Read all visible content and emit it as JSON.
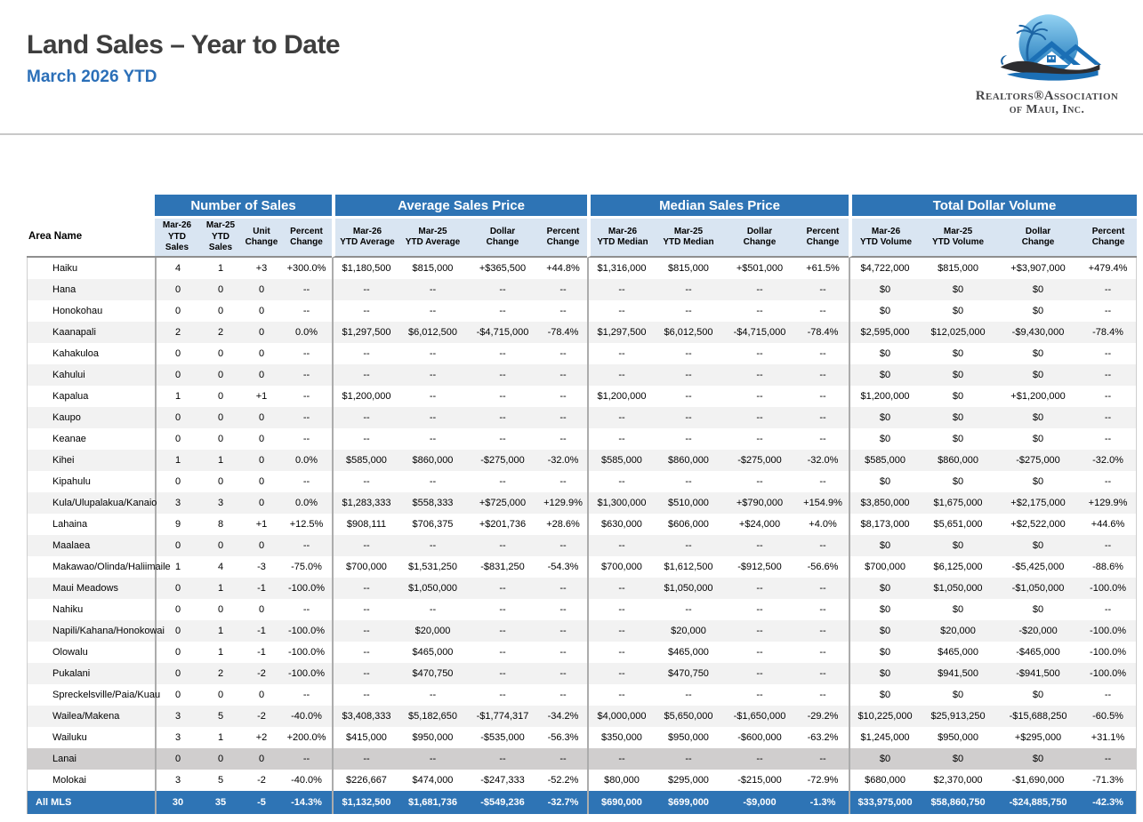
{
  "header": {
    "title": "Land Sales – Year to Date",
    "subtitle": "March 2026 YTD",
    "logo": {
      "line1": "Realtors®Association",
      "line2": "of Maui, Inc."
    }
  },
  "colors": {
    "header_blue": "#2e74b5",
    "subheader_blue": "#d9e5f2",
    "stripe_gray": "#f2f2f2",
    "island_divider_gray": "#d0cece",
    "title_gray": "#3e3e3e",
    "subtitle_blue": "#2b6fb8"
  },
  "table": {
    "area_header": "Area Name",
    "groups": [
      {
        "label": "Number of Sales",
        "columns": [
          "Mar-26\nYTD\nSales",
          "Mar-25\nYTD\nSales",
          "Unit\nChange",
          "Percent\nChange"
        ]
      },
      {
        "label": "Average Sales Price",
        "columns": [
          "Mar-26\nYTD Average",
          "Mar-25\nYTD Average",
          "Dollar\nChange",
          "Percent\nChange"
        ]
      },
      {
        "label": "Median Sales Price",
        "columns": [
          "Mar-26\nYTD Median",
          "Mar-25\nYTD Median",
          "Dollar\nChange",
          "Percent\nChange"
        ]
      },
      {
        "label": "Total Dollar Volume",
        "columns": [
          "Mar-26\nYTD Volume",
          "Mar-25\nYTD Volume",
          "Dollar\nChange",
          "Percent\nChange"
        ]
      }
    ],
    "rows": [
      {
        "area": "Haiku",
        "values": [
          "4",
          "1",
          "+3",
          "+300.0%",
          "$1,180,500",
          "$815,000",
          "+$365,500",
          "+44.8%",
          "$1,316,000",
          "$815,000",
          "+$501,000",
          "+61.5%",
          "$4,722,000",
          "$815,000",
          "+$3,907,000",
          "+479.4%"
        ]
      },
      {
        "area": "Hana",
        "values": [
          "0",
          "0",
          "0",
          "--",
          "--",
          "--",
          "--",
          "--",
          "--",
          "--",
          "--",
          "--",
          "$0",
          "$0",
          "$0",
          "--"
        ]
      },
      {
        "area": "Honokohau",
        "values": [
          "0",
          "0",
          "0",
          "--",
          "--",
          "--",
          "--",
          "--",
          "--",
          "--",
          "--",
          "--",
          "$0",
          "$0",
          "$0",
          "--"
        ]
      },
      {
        "area": "Kaanapali",
        "values": [
          "2",
          "2",
          "0",
          "0.0%",
          "$1,297,500",
          "$6,012,500",
          "-$4,715,000",
          "-78.4%",
          "$1,297,500",
          "$6,012,500",
          "-$4,715,000",
          "-78.4%",
          "$2,595,000",
          "$12,025,000",
          "-$9,430,000",
          "-78.4%"
        ]
      },
      {
        "area": "Kahakuloa",
        "values": [
          "0",
          "0",
          "0",
          "--",
          "--",
          "--",
          "--",
          "--",
          "--",
          "--",
          "--",
          "--",
          "$0",
          "$0",
          "$0",
          "--"
        ]
      },
      {
        "area": "Kahului",
        "values": [
          "0",
          "0",
          "0",
          "--",
          "--",
          "--",
          "--",
          "--",
          "--",
          "--",
          "--",
          "--",
          "$0",
          "$0",
          "$0",
          "--"
        ]
      },
      {
        "area": "Kapalua",
        "values": [
          "1",
          "0",
          "+1",
          "--",
          "$1,200,000",
          "--",
          "--",
          "--",
          "$1,200,000",
          "--",
          "--",
          "--",
          "$1,200,000",
          "$0",
          "+$1,200,000",
          "--"
        ]
      },
      {
        "area": "Kaupo",
        "values": [
          "0",
          "0",
          "0",
          "--",
          "--",
          "--",
          "--",
          "--",
          "--",
          "--",
          "--",
          "--",
          "$0",
          "$0",
          "$0",
          "--"
        ]
      },
      {
        "area": "Keanae",
        "values": [
          "0",
          "0",
          "0",
          "--",
          "--",
          "--",
          "--",
          "--",
          "--",
          "--",
          "--",
          "--",
          "$0",
          "$0",
          "$0",
          "--"
        ]
      },
      {
        "area": "Kihei",
        "values": [
          "1",
          "1",
          "0",
          "0.0%",
          "$585,000",
          "$860,000",
          "-$275,000",
          "-32.0%",
          "$585,000",
          "$860,000",
          "-$275,000",
          "-32.0%",
          "$585,000",
          "$860,000",
          "-$275,000",
          "-32.0%"
        ]
      },
      {
        "area": "Kipahulu",
        "values": [
          "0",
          "0",
          "0",
          "--",
          "--",
          "--",
          "--",
          "--",
          "--",
          "--",
          "--",
          "--",
          "$0",
          "$0",
          "$0",
          "--"
        ]
      },
      {
        "area": "Kula/Ulupalakua/Kanaio",
        "values": [
          "3",
          "3",
          "0",
          "0.0%",
          "$1,283,333",
          "$558,333",
          "+$725,000",
          "+129.9%",
          "$1,300,000",
          "$510,000",
          "+$790,000",
          "+154.9%",
          "$3,850,000",
          "$1,675,000",
          "+$2,175,000",
          "+129.9%"
        ]
      },
      {
        "area": "Lahaina",
        "values": [
          "9",
          "8",
          "+1",
          "+12.5%",
          "$908,111",
          "$706,375",
          "+$201,736",
          "+28.6%",
          "$630,000",
          "$606,000",
          "+$24,000",
          "+4.0%",
          "$8,173,000",
          "$5,651,000",
          "+$2,522,000",
          "+44.6%"
        ]
      },
      {
        "area": "Maalaea",
        "values": [
          "0",
          "0",
          "0",
          "--",
          "--",
          "--",
          "--",
          "--",
          "--",
          "--",
          "--",
          "--",
          "$0",
          "$0",
          "$0",
          "--"
        ]
      },
      {
        "area": "Makawao/Olinda/Haliimaile",
        "values": [
          "1",
          "4",
          "-3",
          "-75.0%",
          "$700,000",
          "$1,531,250",
          "-$831,250",
          "-54.3%",
          "$700,000",
          "$1,612,500",
          "-$912,500",
          "-56.6%",
          "$700,000",
          "$6,125,000",
          "-$5,425,000",
          "-88.6%"
        ]
      },
      {
        "area": "Maui Meadows",
        "values": [
          "0",
          "1",
          "-1",
          "-100.0%",
          "--",
          "$1,050,000",
          "--",
          "--",
          "--",
          "$1,050,000",
          "--",
          "--",
          "$0",
          "$1,050,000",
          "-$1,050,000",
          "-100.0%"
        ]
      },
      {
        "area": "Nahiku",
        "values": [
          "0",
          "0",
          "0",
          "--",
          "--",
          "--",
          "--",
          "--",
          "--",
          "--",
          "--",
          "--",
          "$0",
          "$0",
          "$0",
          "--"
        ]
      },
      {
        "area": "Napili/Kahana/Honokowai",
        "values": [
          "0",
          "1",
          "-1",
          "-100.0%",
          "--",
          "$20,000",
          "--",
          "--",
          "--",
          "$20,000",
          "--",
          "--",
          "$0",
          "$20,000",
          "-$20,000",
          "-100.0%"
        ]
      },
      {
        "area": "Olowalu",
        "values": [
          "0",
          "1",
          "-1",
          "-100.0%",
          "--",
          "$465,000",
          "--",
          "--",
          "--",
          "$465,000",
          "--",
          "--",
          "$0",
          "$465,000",
          "-$465,000",
          "-100.0%"
        ]
      },
      {
        "area": "Pukalani",
        "values": [
          "0",
          "2",
          "-2",
          "-100.0%",
          "--",
          "$470,750",
          "--",
          "--",
          "--",
          "$470,750",
          "--",
          "--",
          "$0",
          "$941,500",
          "-$941,500",
          "-100.0%"
        ]
      },
      {
        "area": "Spreckelsville/Paia/Kuau",
        "values": [
          "0",
          "0",
          "0",
          "--",
          "--",
          "--",
          "--",
          "--",
          "--",
          "--",
          "--",
          "--",
          "$0",
          "$0",
          "$0",
          "--"
        ]
      },
      {
        "area": "Wailea/Makena",
        "values": [
          "3",
          "5",
          "-2",
          "-40.0%",
          "$3,408,333",
          "$5,182,650",
          "-$1,774,317",
          "-34.2%",
          "$4,000,000",
          "$5,650,000",
          "-$1,650,000",
          "-29.2%",
          "$10,225,000",
          "$25,913,250",
          "-$15,688,250",
          "-60.5%"
        ]
      },
      {
        "area": "Wailuku",
        "values": [
          "3",
          "1",
          "+2",
          "+200.0%",
          "$415,000",
          "$950,000",
          "-$535,000",
          "-56.3%",
          "$350,000",
          "$950,000",
          "-$600,000",
          "-63.2%",
          "$1,245,000",
          "$950,000",
          "+$295,000",
          "+31.1%"
        ]
      },
      {
        "area": "Lanai",
        "dark": true,
        "values": [
          "0",
          "0",
          "0",
          "--",
          "--",
          "--",
          "--",
          "--",
          "--",
          "--",
          "--",
          "--",
          "$0",
          "$0",
          "$0",
          "--"
        ]
      },
      {
        "area": "Molokai",
        "values": [
          "3",
          "5",
          "-2",
          "-40.0%",
          "$226,667",
          "$474,000",
          "-$247,333",
          "-52.2%",
          "$80,000",
          "$295,000",
          "-$215,000",
          "-72.9%",
          "$680,000",
          "$2,370,000",
          "-$1,690,000",
          "-71.3%"
        ]
      }
    ],
    "total_row": {
      "area": "All MLS",
      "values": [
        "30",
        "35",
        "-5",
        "-14.3%",
        "$1,132,500",
        "$1,681,736",
        "-$549,236",
        "-32.7%",
        "$690,000",
        "$699,000",
        "-$9,000",
        "-1.3%",
        "$33,975,000",
        "$58,860,750",
        "-$24,885,750",
        "-42.3%"
      ]
    }
  }
}
